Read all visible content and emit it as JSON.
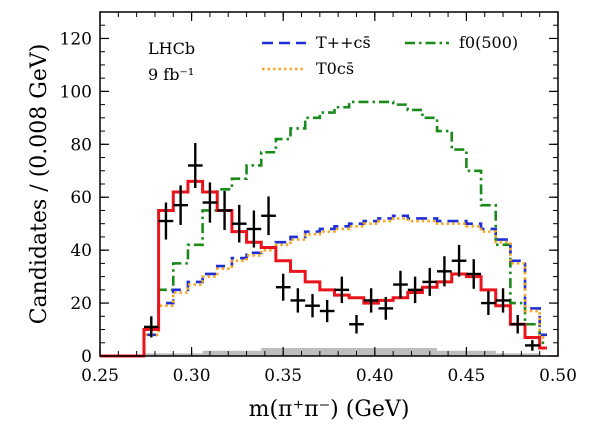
{
  "chart_data": {
    "type": "line",
    "xlabel": "m(π⁺π⁻) (GeV)",
    "ylabel": "Candidates / (0.008 GeV)",
    "xlim": [
      0.25,
      0.5
    ],
    "ylim": [
      0,
      130
    ],
    "xticks": [
      "0.25",
      "0.30",
      "0.35",
      "0.40",
      "0.45",
      "0.50"
    ],
    "yticks": [
      "0",
      "20",
      "40",
      "60",
      "80",
      "100",
      "120"
    ],
    "experiment": "LHCb",
    "luminosity": "9 fb⁻¹",
    "legend": [
      {
        "label": "T++cs̄",
        "color": "#1f2fd6",
        "style": "dashed"
      },
      {
        "label": "T0cs̄",
        "color": "#f5a623",
        "style": "dotted"
      },
      {
        "label": "f0(500)",
        "color": "#1a8a1a",
        "style": "dashdot"
      }
    ],
    "bin_edges": [
      0.25,
      0.258,
      0.266,
      0.274,
      0.282,
      0.29,
      0.298,
      0.306,
      0.314,
      0.322,
      0.33,
      0.338,
      0.346,
      0.354,
      0.362,
      0.37,
      0.378,
      0.386,
      0.394,
      0.402,
      0.41,
      0.418,
      0.426,
      0.434,
      0.442,
      0.45,
      0.458,
      0.466,
      0.474,
      0.482,
      0.49,
      0.494
    ],
    "series": [
      {
        "name": "Data",
        "type": "errorbar",
        "color": "#000000",
        "x": [
          0.278,
          0.286,
          0.294,
          0.302,
          0.31,
          0.318,
          0.326,
          0.334,
          0.342,
          0.35,
          0.358,
          0.366,
          0.374,
          0.382,
          0.39,
          0.398,
          0.406,
          0.414,
          0.422,
          0.43,
          0.438,
          0.446,
          0.454,
          0.462,
          0.47,
          0.478,
          0.486
        ],
        "y": [
          11,
          51,
          57,
          72,
          58,
          55,
          50,
          48,
          53,
          26,
          21,
          19,
          17,
          25,
          12,
          21,
          18,
          27,
          25,
          28,
          32,
          36,
          31,
          20,
          21,
          12,
          4
        ],
        "err": [
          4,
          7,
          7.5,
          8.5,
          7.6,
          7.4,
          7.1,
          7,
          7.3,
          5.1,
          4.6,
          4.4,
          4.2,
          5,
          3.5,
          4.6,
          4.3,
          5.2,
          5,
          5.3,
          5.7,
          6,
          5.6,
          4.5,
          4.6,
          3.5,
          2
        ]
      },
      {
        "name": "Fit",
        "color": "#e8141c",
        "style": "solid",
        "values": [
          0,
          0,
          0,
          10,
          55,
          62,
          66,
          62,
          55,
          47,
          43,
          41,
          36,
          32,
          28,
          25,
          23,
          22,
          20,
          21,
          22,
          24,
          26,
          28,
          31,
          30,
          25,
          19,
          12,
          7,
          3
        ]
      },
      {
        "name": "T++cs̄",
        "color": "#1f2fd6",
        "style": "dashed",
        "values": [
          0,
          0,
          0,
          8,
          20,
          25,
          28,
          31,
          34,
          37,
          39,
          41,
          43,
          45,
          47,
          48,
          49,
          50,
          51,
          52,
          53,
          52,
          52,
          51,
          51,
          50,
          48,
          44,
          36,
          18,
          8
        ]
      },
      {
        "name": "T0cs̄",
        "color": "#f5a623",
        "style": "dotted",
        "values": [
          0,
          0,
          0,
          8,
          19,
          24,
          27,
          30,
          33,
          36,
          38,
          40,
          42,
          44,
          46,
          47,
          48,
          49,
          50,
          51,
          52,
          51,
          51,
          50,
          50,
          49,
          47,
          43,
          35,
          17,
          7
        ]
      },
      {
        "name": "f0(500)",
        "color": "#1a8a1a",
        "style": "dashdot",
        "values": [
          0,
          0,
          0,
          10,
          25,
          35,
          42,
          55,
          63,
          67,
          72,
          77,
          82,
          86,
          90,
          92,
          94,
          96,
          96,
          96,
          95,
          93,
          90,
          85,
          78,
          70,
          57,
          42,
          20,
          12,
          5
        ]
      },
      {
        "name": "Background",
        "color": "#bdbdbd",
        "style": "filled",
        "values": [
          0,
          0,
          0,
          1,
          1,
          1,
          1,
          2,
          2,
          2,
          2,
          3,
          3,
          3,
          3,
          3,
          3,
          3,
          3,
          3,
          3,
          3,
          3,
          2,
          2,
          2,
          2,
          1,
          1,
          1,
          0
        ]
      }
    ]
  }
}
